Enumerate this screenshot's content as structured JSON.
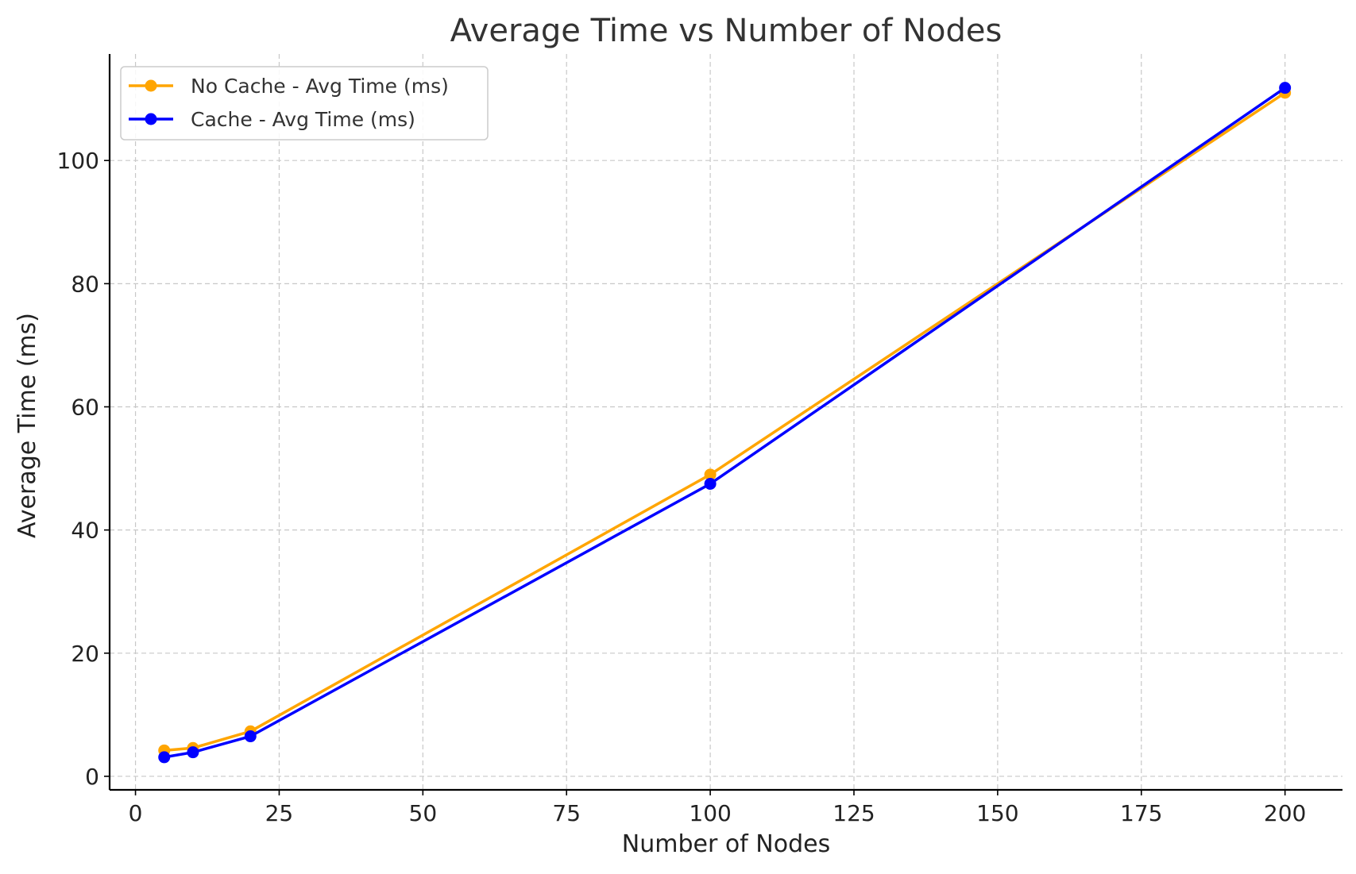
{
  "chart_data": {
    "type": "line",
    "title": "Average Time vs Number of Nodes",
    "xlabel": "Number of Nodes",
    "ylabel": "Average Time (ms)",
    "xlim": [
      -4.5,
      210
    ],
    "ylim": [
      -2.2,
      117.3
    ],
    "xticks": [
      0,
      25,
      50,
      75,
      100,
      125,
      150,
      175,
      200
    ],
    "yticks": [
      0,
      20,
      40,
      60,
      80,
      100
    ],
    "grid": true,
    "legend_position": "top-left",
    "series": [
      {
        "name": "No Cache - Avg Time (ms)",
        "color": "#FFA500",
        "x": [
          5,
          10,
          20,
          100,
          200
        ],
        "y": [
          4.2,
          4.6,
          7.3,
          49.0,
          111.0
        ]
      },
      {
        "name": "Cache - Avg Time (ms)",
        "color": "#0000FF",
        "x": [
          5,
          10,
          20,
          100,
          200
        ],
        "y": [
          3.1,
          3.9,
          6.5,
          47.5,
          111.8
        ]
      }
    ]
  }
}
